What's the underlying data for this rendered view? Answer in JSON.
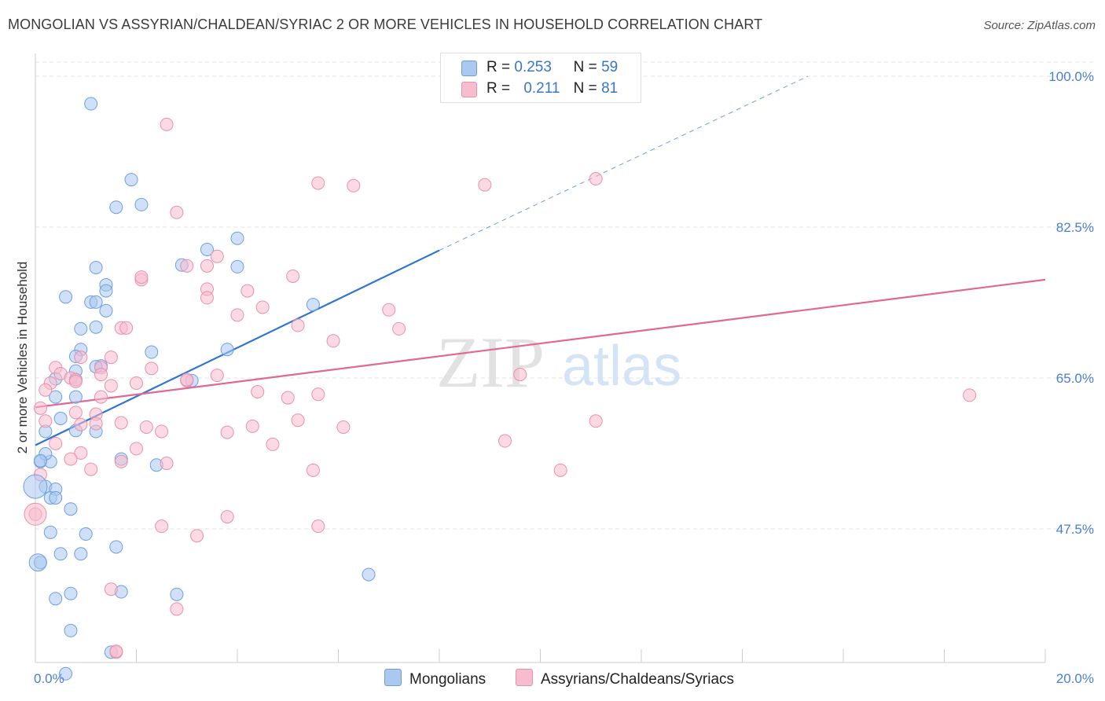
{
  "title": "MONGOLIAN VS ASSYRIAN/CHALDEAN/SYRIAC 2 OR MORE VEHICLES IN HOUSEHOLD CORRELATION CHART",
  "source": "Source: ZipAtlas.com",
  "watermark": {
    "zip": "ZIP",
    "atlas": "atlas"
  },
  "legend": {
    "r_label": "R =",
    "n_label": "N =",
    "rows": [
      {
        "r": "0.253",
        "n": "59",
        "color": "#aac8f0"
      },
      {
        "r": "0.211",
        "n": "81",
        "color": "#f7bccd"
      }
    ]
  },
  "bottom_legend": [
    {
      "label": "Mongolians",
      "color": "#aac8f0"
    },
    {
      "label": "Assyrians/Chaldeans/Syriacs",
      "color": "#f7bccd"
    }
  ],
  "colors": {
    "blue_fill": "#aac8f0",
    "blue_stroke": "#6d9fe0",
    "blue_line": "#2e74d0",
    "pink_fill": "#f7bccd",
    "pink_stroke": "#e890ad",
    "pink_line": "#e06892",
    "tick": "#4a7fcf"
  },
  "chart_data": {
    "type": "scatter",
    "xlabel": "",
    "ylabel": "2 or more Vehicles in Household",
    "xlim": [
      0,
      20
    ],
    "ylim": [
      32,
      102
    ],
    "x_tick_labels": [
      "0.0%",
      "20.0%"
    ],
    "y_ticks": [
      47.5,
      65.0,
      82.5,
      100.0
    ],
    "y_tick_labels": [
      "47.5%",
      "65.0%",
      "82.5%",
      "100.0%"
    ],
    "grid": true,
    "legend_position": "top-center",
    "series": [
      {
        "name": "Mongolians",
        "r": 0.253,
        "n": 59,
        "trend": {
          "x0": 0.0,
          "y0": 57.2,
          "x1": 8.0,
          "y1": 79.8,
          "dashed_to_x": 15.3,
          "dashed_to_y": 100.0
        },
        "points": [
          [
            1.1,
            96.8
          ],
          [
            1.9,
            88.0
          ],
          [
            1.6,
            84.8
          ],
          [
            2.1,
            85.1
          ],
          [
            4.0,
            81.2
          ],
          [
            3.4,
            79.9
          ],
          [
            2.9,
            78.1
          ],
          [
            4.0,
            77.9
          ],
          [
            1.2,
            77.8
          ],
          [
            0.6,
            74.4
          ],
          [
            1.4,
            75.8
          ],
          [
            1.4,
            75.1
          ],
          [
            1.1,
            73.8
          ],
          [
            1.2,
            73.8
          ],
          [
            5.5,
            73.5
          ],
          [
            1.4,
            72.8
          ],
          [
            1.2,
            70.9
          ],
          [
            0.9,
            70.7
          ],
          [
            3.8,
            68.3
          ],
          [
            2.3,
            68.0
          ],
          [
            0.9,
            68.3
          ],
          [
            0.8,
            67.5
          ],
          [
            1.3,
            66.4
          ],
          [
            1.2,
            66.3
          ],
          [
            0.8,
            65.8
          ],
          [
            0.4,
            64.9
          ],
          [
            0.8,
            64.8
          ],
          [
            3.1,
            64.7
          ],
          [
            0.8,
            62.8
          ],
          [
            0.4,
            62.8
          ],
          [
            0.5,
            60.3
          ],
          [
            0.8,
            58.9
          ],
          [
            0.2,
            58.8
          ],
          [
            1.2,
            58.8
          ],
          [
            1.7,
            55.6
          ],
          [
            0.1,
            55.3
          ],
          [
            0.3,
            55.3
          ],
          [
            2.4,
            54.9
          ],
          [
            0.2,
            52.4
          ],
          [
            0.4,
            52.1
          ],
          [
            0.3,
            51.1
          ],
          [
            0.4,
            51.1
          ],
          [
            0.7,
            49.8
          ],
          [
            0.3,
            47.1
          ],
          [
            1.0,
            46.9
          ],
          [
            1.6,
            45.4
          ],
          [
            0.1,
            43.6
          ],
          [
            0.5,
            44.6
          ],
          [
            0.9,
            44.6
          ],
          [
            6.6,
            42.2
          ],
          [
            2.8,
            39.9
          ],
          [
            1.7,
            40.2
          ],
          [
            0.7,
            40.0
          ],
          [
            0.4,
            39.4
          ],
          [
            0.7,
            35.7
          ],
          [
            1.5,
            33.2
          ],
          [
            0.6,
            30.7
          ],
          [
            0.2,
            56.2
          ],
          [
            0.1,
            55.4
          ]
        ]
      },
      {
        "name": "Assyrians/Chaldeans/Syriacs",
        "r": 0.211,
        "n": 81,
        "trend": {
          "x0": 0.0,
          "y0": 61.6,
          "x1": 20.0,
          "y1": 76.4
        },
        "points": [
          [
            2.6,
            94.4
          ],
          [
            5.6,
            87.6
          ],
          [
            6.3,
            87.3
          ],
          [
            8.9,
            87.4
          ],
          [
            11.1,
            88.1
          ],
          [
            2.8,
            84.2
          ],
          [
            3.6,
            79.1
          ],
          [
            3.0,
            78.0
          ],
          [
            3.4,
            78.0
          ],
          [
            5.1,
            76.8
          ],
          [
            2.1,
            76.4
          ],
          [
            2.1,
            76.7
          ],
          [
            3.4,
            75.3
          ],
          [
            4.2,
            75.1
          ],
          [
            3.4,
            74.3
          ],
          [
            4.5,
            73.2
          ],
          [
            7.0,
            72.9
          ],
          [
            4.0,
            72.3
          ],
          [
            5.2,
            71.1
          ],
          [
            1.7,
            70.8
          ],
          [
            1.8,
            70.8
          ],
          [
            7.2,
            70.7
          ],
          [
            5.9,
            69.3
          ],
          [
            1.5,
            67.4
          ],
          [
            0.9,
            67.4
          ],
          [
            0.4,
            66.2
          ],
          [
            1.3,
            66.2
          ],
          [
            2.3,
            66.1
          ],
          [
            0.5,
            65.5
          ],
          [
            1.3,
            65.4
          ],
          [
            9.6,
            65.4
          ],
          [
            3.6,
            65.3
          ],
          [
            0.7,
            65.0
          ],
          [
            0.8,
            64.8
          ],
          [
            0.8,
            64.6
          ],
          [
            3.0,
            64.7
          ],
          [
            0.3,
            64.4
          ],
          [
            1.5,
            64.1
          ],
          [
            2.0,
            64.4
          ],
          [
            0.2,
            63.6
          ],
          [
            4.4,
            63.4
          ],
          [
            5.6,
            63.1
          ],
          [
            5.0,
            62.7
          ],
          [
            1.3,
            62.8
          ],
          [
            18.5,
            63.0
          ],
          [
            0.1,
            61.5
          ],
          [
            0.8,
            61.0
          ],
          [
            1.2,
            60.8
          ],
          [
            0.2,
            60.0
          ],
          [
            5.2,
            60.1
          ],
          [
            11.1,
            60.0
          ],
          [
            1.7,
            59.8
          ],
          [
            0.9,
            59.6
          ],
          [
            1.2,
            59.7
          ],
          [
            2.2,
            59.3
          ],
          [
            4.3,
            59.4
          ],
          [
            6.1,
            59.3
          ],
          [
            2.5,
            58.8
          ],
          [
            3.8,
            58.7
          ],
          [
            0.4,
            57.4
          ],
          [
            9.3,
            57.7
          ],
          [
            4.7,
            57.3
          ],
          [
            2.0,
            56.8
          ],
          [
            0.9,
            56.3
          ],
          [
            0.7,
            55.6
          ],
          [
            1.7,
            55.3
          ],
          [
            2.6,
            55.1
          ],
          [
            1.1,
            54.4
          ],
          [
            5.5,
            54.3
          ],
          [
            10.4,
            54.3
          ],
          [
            0.1,
            53.8
          ],
          [
            0.0,
            49.2
          ],
          [
            3.8,
            48.9
          ],
          [
            2.5,
            47.8
          ],
          [
            5.6,
            47.8
          ],
          [
            3.2,
            46.7
          ],
          [
            1.5,
            40.5
          ],
          [
            2.8,
            38.2
          ],
          [
            1.6,
            33.2
          ],
          [
            1.6,
            33.3
          ],
          [
            3.0,
            64.8
          ]
        ]
      }
    ]
  }
}
